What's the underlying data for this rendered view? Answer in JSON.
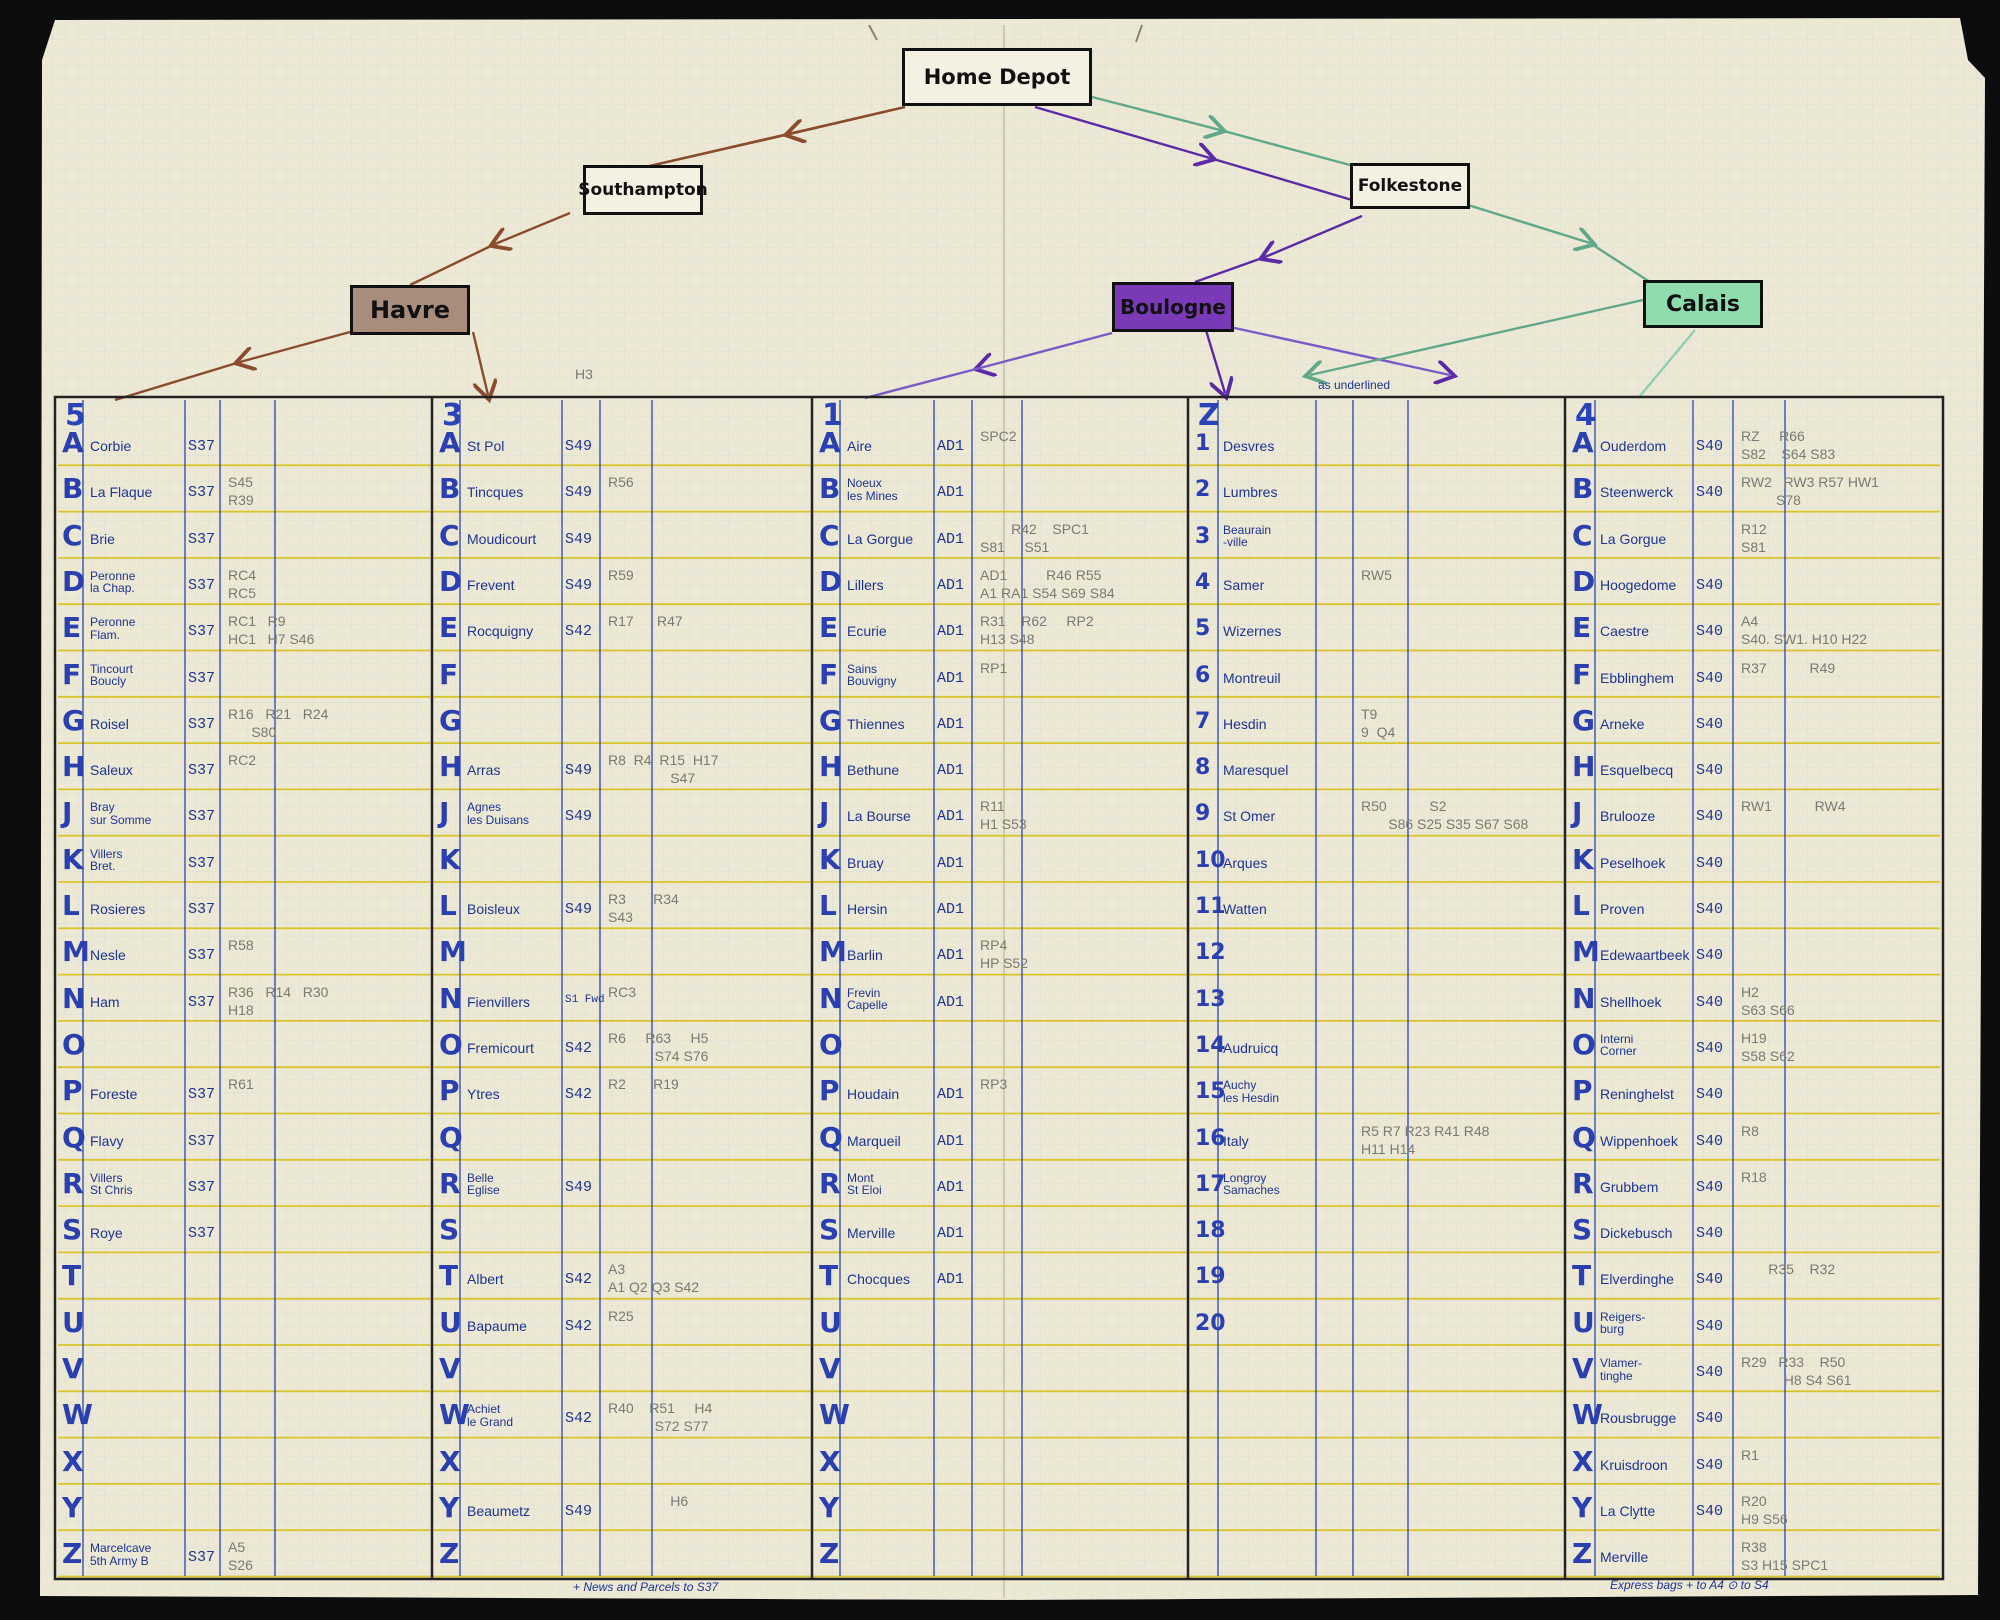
{
  "colors": {
    "paper": "#ece8d4",
    "grid": "#d7e0dc",
    "rule": "#d9c52a",
    "ink": "#1e3494",
    "havre": "#a88c7c",
    "boulogne": "#7a3ab8",
    "calais": "#8fdcae",
    "brown": "#8a4c2c",
    "purple": "#5b2aa6",
    "green": "#5fa88a"
  },
  "nodes": {
    "home": "Home Depot",
    "southampton": "Southampton",
    "folkestone": "Folkestone",
    "havre": "Havre",
    "boulogne": "Boulogne",
    "calais": "Calais"
  },
  "notes": {
    "h3": "H3",
    "underlined": "as underlined"
  },
  "footer": {
    "left": "+ News and Parcels to S37",
    "right": "Express bags + to A4  ⊙ to S4"
  },
  "rows": [
    "A",
    "B",
    "C",
    "D",
    "E",
    "F",
    "G",
    "H",
    "J",
    "K",
    "L",
    "M",
    "N",
    "O",
    "P",
    "Q",
    "R",
    "S",
    "T",
    "U",
    "V",
    "W",
    "X",
    "Y",
    "Z"
  ],
  "col_rows": [
    "1",
    "2",
    "3",
    "4",
    "5",
    "6",
    "7",
    "8",
    "9",
    "10",
    "11",
    "12",
    "13",
    "14",
    "15",
    "16",
    "17",
    "18",
    "19",
    "20"
  ],
  "columns": [
    {
      "head": "5",
      "entries": [
        {
          "place": "Corbie",
          "code": "S37",
          "notes": []
        },
        {
          "place": "La Flaque",
          "code": "S37",
          "notes": [
            "S45",
            "R39"
          ]
        },
        {
          "place": "Brie",
          "code": "S37",
          "notes": []
        },
        {
          "place": "Peronne\nla Chap.",
          "code": "S37",
          "notes": [
            "RC4",
            "RC5"
          ]
        },
        {
          "place": "Peronne\nFlam.",
          "code": "S37",
          "notes": [
            "RC1   R9",
            "HC1   H7 S46"
          ]
        },
        {
          "place": "Tincourt\nBoucly",
          "code": "S37",
          "notes": []
        },
        {
          "place": "Roisel",
          "code": "S37",
          "notes": [
            "R16   R21   R24",
            "      S80"
          ]
        },
        {
          "place": "Saleux",
          "code": "S37",
          "notes": [
            "RC2"
          ]
        },
        {
          "place": "Bray\nsur Somme",
          "code": "S37",
          "notes": []
        },
        {
          "place": "Villers\nBret.",
          "code": "S37",
          "notes": []
        },
        {
          "place": "Rosieres",
          "code": "S37",
          "notes": []
        },
        {
          "place": "Nesle",
          "code": "S37",
          "notes": [
            "R58"
          ]
        },
        {
          "place": "Ham",
          "code": "S37",
          "notes": [
            "R36   R14   R30",
            "H18"
          ]
        },
        {
          "place": "",
          "code": "",
          "notes": []
        },
        {
          "place": "Foreste",
          "code": "S37",
          "notes": [
            "R61"
          ]
        },
        {
          "place": "Flavy",
          "code": "S37",
          "notes": []
        },
        {
          "place": "Villers\nSt Chris",
          "code": "S37",
          "notes": []
        },
        {
          "place": "Roye",
          "code": "S37",
          "notes": []
        },
        {
          "place": "",
          "code": "",
          "notes": []
        },
        {
          "place": "",
          "code": "",
          "notes": []
        },
        {
          "place": "",
          "code": "",
          "notes": []
        },
        {
          "place": "",
          "code": "",
          "notes": []
        },
        {
          "place": "",
          "code": "",
          "notes": []
        },
        {
          "place": "",
          "code": "",
          "notes": []
        },
        {
          "place": "Marcelcave\n5th Army B",
          "code": "S37",
          "notes": [
            "A5",
            "S26"
          ]
        }
      ]
    },
    {
      "head": "3",
      "entries": [
        {
          "place": "St Pol",
          "code": "S49",
          "notes": []
        },
        {
          "place": "Tincques",
          "code": "S49",
          "notes": [
            "R56"
          ]
        },
        {
          "place": "Moudicourt",
          "code": "S49",
          "notes": []
        },
        {
          "place": "Frevent",
          "code": "S49",
          "notes": [
            "R59"
          ]
        },
        {
          "place": "Rocquigny",
          "code": "S42",
          "notes": [
            "R17      R47"
          ]
        },
        {
          "place": "",
          "code": "",
          "notes": []
        },
        {
          "place": "",
          "code": "",
          "notes": []
        },
        {
          "place": "Arras",
          "code": "S49",
          "notes": [
            "R8  R4  R15  H17",
            "                S47"
          ]
        },
        {
          "place": "Agnes\nles Duisans",
          "code": "S49",
          "notes": []
        },
        {
          "place": "",
          "code": "",
          "notes": []
        },
        {
          "place": "Boisleux",
          "code": "S49",
          "notes": [
            "R3       R34",
            "S43"
          ]
        },
        {
          "place": "",
          "code": "",
          "notes": []
        },
        {
          "place": "Fienvillers",
          "code": "S1 Fwd",
          "notes": [
            "RC3"
          ]
        },
        {
          "place": "Fremicourt",
          "code": "S42",
          "notes": [
            "R6     R63     H5",
            "            S74 S76"
          ]
        },
        {
          "place": "Ytres",
          "code": "S42",
          "notes": [
            "R2       R19"
          ]
        },
        {
          "place": "",
          "code": "",
          "notes": []
        },
        {
          "place": "Belle\nEglise",
          "code": "S49",
          "notes": []
        },
        {
          "place": "",
          "code": "",
          "notes": []
        },
        {
          "place": "Albert",
          "code": "S42",
          "notes": [
            "A3",
            "A1 Q2 Q3 S42"
          ]
        },
        {
          "place": "Bapaume",
          "code": "S42",
          "notes": [
            "R25"
          ]
        },
        {
          "place": "",
          "code": "",
          "notes": []
        },
        {
          "place": "Achiet\nle Grand",
          "code": "S42",
          "notes": [
            "R40    R51     H4",
            "            S72 S77"
          ]
        },
        {
          "place": "",
          "code": "",
          "notes": []
        },
        {
          "place": "Beaumetz",
          "code": "S49",
          "notes": [
            "                H6"
          ]
        },
        {
          "place": "",
          "code": "",
          "notes": []
        }
      ]
    },
    {
      "head": "1",
      "entries": [
        {
          "place": "Aire",
          "code": "AD1",
          "notes": [
            "SPC2"
          ]
        },
        {
          "place": "Noeux\nles Mines",
          "code": "AD1",
          "notes": []
        },
        {
          "place": "La Gorgue",
          "code": "AD1",
          "notes": [
            "        R42    SPC1",
            "S81     S51"
          ]
        },
        {
          "place": "Lillers",
          "code": "AD1",
          "notes": [
            "AD1          R46 R55",
            "A1 RA1 S54 S69 S84"
          ]
        },
        {
          "place": "Ecurie",
          "code": "AD1",
          "notes": [
            "R31    R62     RP2",
            "H13 S48"
          ]
        },
        {
          "place": "Sains\nBouvigny",
          "code": "AD1",
          "notes": [
            "RP1"
          ]
        },
        {
          "place": "Thiennes",
          "code": "AD1",
          "notes": []
        },
        {
          "place": "Bethune",
          "code": "AD1",
          "notes": []
        },
        {
          "place": "La Bourse",
          "code": "AD1",
          "notes": [
            "R11",
            "H1 S53"
          ]
        },
        {
          "place": "Bruay",
          "code": "AD1",
          "notes": []
        },
        {
          "place": "Hersin",
          "code": "AD1",
          "notes": []
        },
        {
          "place": "Barlin",
          "code": "AD1",
          "notes": [
            "RP4",
            "HP S52"
          ]
        },
        {
          "place": "Frevin\nCapelle",
          "code": "AD1",
          "notes": []
        },
        {
          "place": "",
          "code": "",
          "notes": []
        },
        {
          "place": "Houdain",
          "code": "AD1",
          "notes": [
            "RP3"
          ]
        },
        {
          "place": "Marqueil",
          "code": "AD1",
          "notes": []
        },
        {
          "place": "Mont\nSt Eloi",
          "code": "AD1",
          "notes": []
        },
        {
          "place": "Merville",
          "code": "AD1",
          "notes": []
        },
        {
          "place": "Chocques",
          "code": "AD1",
          "notes": []
        },
        {
          "place": "",
          "code": "",
          "notes": []
        },
        {
          "place": "",
          "code": "",
          "notes": []
        },
        {
          "place": "",
          "code": "",
          "notes": []
        },
        {
          "place": "",
          "code": "",
          "notes": []
        },
        {
          "place": "",
          "code": "",
          "notes": []
        },
        {
          "place": "",
          "code": "",
          "notes": []
        }
      ]
    },
    {
      "head": "Z",
      "entries": [
        {
          "place": "Desvres",
          "code": "",
          "notes": []
        },
        {
          "place": "Lumbres",
          "code": "",
          "notes": []
        },
        {
          "place": "Beaurain\n-ville",
          "code": "",
          "notes": []
        },
        {
          "place": "Samer",
          "code": "",
          "notes": [
            "RW5"
          ]
        },
        {
          "place": "Wizernes",
          "code": "",
          "notes": []
        },
        {
          "place": "Montreuil",
          "code": "",
          "notes": []
        },
        {
          "place": "Hesdin",
          "code": "",
          "notes": [
            "T9",
            "9  Q4"
          ]
        },
        {
          "place": "Maresquel",
          "code": "",
          "notes": []
        },
        {
          "place": "St Omer",
          "code": "",
          "notes": [
            "R50           S2",
            "       S86 S25 S35 S67 S68"
          ]
        },
        {
          "place": "Arques",
          "code": "",
          "notes": []
        },
        {
          "place": "Watten",
          "code": "",
          "notes": []
        },
        {
          "place": "",
          "code": "",
          "notes": []
        },
        {
          "place": "",
          "code": "",
          "notes": []
        },
        {
          "place": "Audruicq",
          "code": "",
          "notes": []
        },
        {
          "place": "Auchy\nles Hesdin",
          "code": "",
          "notes": []
        },
        {
          "place": "Italy",
          "code": "",
          "notes": [
            "R5 R7 R23 R41 R48",
            "H11 H14"
          ]
        },
        {
          "place": "Longroy\nSamaches",
          "code": "",
          "notes": []
        },
        {
          "place": "",
          "code": "",
          "notes": []
        },
        {
          "place": "",
          "code": "",
          "notes": []
        },
        {
          "place": "",
          "code": "",
          "notes": []
        },
        {
          "place": "",
          "code": "",
          "notes": []
        },
        {
          "place": "",
          "code": "",
          "notes": []
        },
        {
          "place": "",
          "code": "",
          "notes": []
        },
        {
          "place": "",
          "code": "",
          "notes": []
        },
        {
          "place": "",
          "code": "",
          "notes": []
        }
      ]
    },
    {
      "head": "4",
      "entries": [
        {
          "place": "Ouderdom",
          "code": "S40",
          "notes": [
            "RZ     R66",
            "S82    S64 S83"
          ]
        },
        {
          "place": "Steenwerck",
          "code": "S40",
          "notes": [
            "RW2   RW3 R57 HW1",
            "         S78"
          ]
        },
        {
          "place": "La Gorgue",
          "code": "",
          "notes": [
            "R12",
            "S81"
          ]
        },
        {
          "place": "Hoogedome",
          "code": "S40",
          "notes": []
        },
        {
          "place": "Caestre",
          "code": "S40",
          "notes": [
            "A4",
            "S40. SW1. H10 H22"
          ]
        },
        {
          "place": "Ebblinghem",
          "code": "S40",
          "notes": [
            "R37           R49"
          ]
        },
        {
          "place": "Arneke",
          "code": "S40",
          "notes": []
        },
        {
          "place": "Esquelbecq",
          "code": "S40",
          "notes": []
        },
        {
          "place": "Brulooze",
          "code": "S40",
          "notes": [
            "RW1           RW4"
          ]
        },
        {
          "place": "Peselhoek",
          "code": "S40",
          "notes": []
        },
        {
          "place": "Proven",
          "code": "S40",
          "notes": []
        },
        {
          "place": "Edewaartbeek",
          "code": "S40",
          "notes": []
        },
        {
          "place": "Shellhoek",
          "code": "S40",
          "notes": [
            "H2",
            "S63 S66"
          ]
        },
        {
          "place": "Interni\nCorner",
          "code": "S40",
          "notes": [
            "H19",
            "S58 S62"
          ]
        },
        {
          "place": "Reninghelst",
          "code": "S40",
          "notes": []
        },
        {
          "place": "Wippenhoek",
          "code": "S40",
          "notes": [
            "R8"
          ]
        },
        {
          "place": "Grubbem",
          "code": "S40",
          "notes": [
            "R18"
          ]
        },
        {
          "place": "Dickebusch",
          "code": "S40",
          "notes": []
        },
        {
          "place": "Elverdinghe",
          "code": "S40",
          "notes": [
            "       R35    R32"
          ]
        },
        {
          "place": "Reigers-\nburg",
          "code": "S40",
          "notes": []
        },
        {
          "place": "Vlamer-\ntinghe",
          "code": "S40",
          "notes": [
            "R29   R33    R50",
            "           H8 S4 S61"
          ]
        },
        {
          "place": "Rousbrugge",
          "code": "S40",
          "notes": []
        },
        {
          "place": "Kruisdroon",
          "code": "S40",
          "notes": [
            "R1"
          ]
        },
        {
          "place": "La Clytte",
          "code": "S40",
          "notes": [
            "R20",
            "H9 S56"
          ]
        },
        {
          "place": "Merville",
          "code": "",
          "notes": [
            "R38",
            "S3 H15 SPC1"
          ]
        }
      ]
    }
  ]
}
